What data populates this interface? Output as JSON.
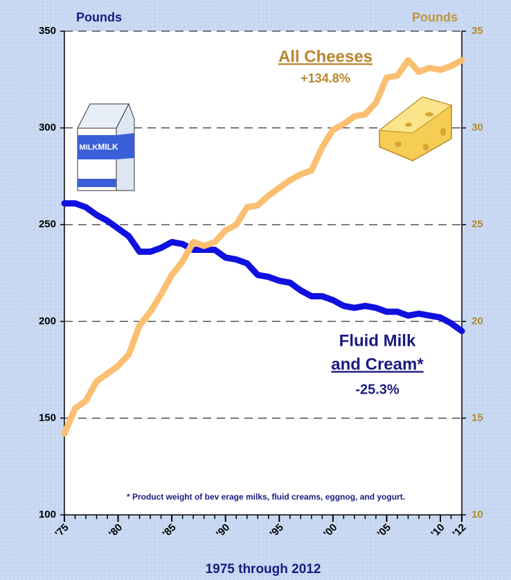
{
  "chart_data": {
    "type": "line",
    "x": [
      1975,
      1976,
      1977,
      1978,
      1979,
      1980,
      1981,
      1982,
      1983,
      1984,
      1985,
      1986,
      1987,
      1988,
      1989,
      1990,
      1991,
      1992,
      1993,
      1994,
      1995,
      1996,
      1997,
      1998,
      1999,
      2000,
      2001,
      2002,
      2003,
      2004,
      2005,
      2006,
      2007,
      2008,
      2009,
      2010,
      2011,
      2012
    ],
    "xlim": [
      1975,
      2012
    ],
    "xticks": [
      {
        "value": 1975,
        "label": "'75"
      },
      {
        "value": 1980,
        "label": "'80"
      },
      {
        "value": 1985,
        "label": "'85"
      },
      {
        "value": 1990,
        "label": "'90"
      },
      {
        "value": 1995,
        "label": "'95"
      },
      {
        "value": 2000,
        "label": "'00"
      },
      {
        "value": 2005,
        "label": "'05"
      },
      {
        "value": 2010,
        "label": "'10"
      },
      {
        "value": 2012,
        "label": "'12"
      }
    ],
    "ylim": [
      100,
      350
    ],
    "yticks": [
      100,
      150,
      200,
      250,
      300,
      350
    ],
    "y2lim": [
      10,
      35
    ],
    "y2ticks": [
      10,
      15,
      20,
      25,
      30,
      35
    ],
    "ylabel": "Pounds",
    "y2label": "Pounds",
    "xlabel": "1975 through 2012",
    "grid": true,
    "series": [
      {
        "name": "Fluid Milk and Cream",
        "color": "#1010e0",
        "axis": "y",
        "values": [
          261,
          261,
          259,
          255,
          252,
          248,
          244,
          236,
          236,
          238,
          241,
          240,
          237,
          237,
          237,
          233,
          232,
          230,
          224,
          223,
          221,
          220,
          216,
          213,
          213,
          211,
          208,
          207,
          208,
          207,
          205,
          205,
          203,
          204,
          203,
          202,
          199,
          195
        ]
      },
      {
        "name": "All Cheeses",
        "color": "#fbbf72",
        "axis": "y2",
        "values": [
          14.2,
          15.5,
          15.9,
          16.9,
          17.3,
          17.7,
          18.3,
          19.8,
          20.5,
          21.4,
          22.4,
          23.1,
          24.1,
          23.9,
          24.1,
          24.7,
          25.0,
          25.9,
          26.0,
          26.5,
          26.9,
          27.3,
          27.6,
          27.8,
          29.0,
          29.9,
          30.2,
          30.6,
          30.7,
          31.3,
          32.6,
          32.7,
          33.5,
          32.9,
          33.1,
          33.0,
          33.2,
          33.5
        ]
      }
    ],
    "annotations": {
      "cheese_name": "All Cheeses",
      "cheese_change": "+134.8%",
      "milk_name_1": "Fluid Milk",
      "milk_name_2": "and Cream*",
      "milk_change": "-25.3%",
      "footnote": "* Product weight of bev erage milks, fluid creams, eggnog, and yogurt.",
      "carton_label": "MILK"
    }
  }
}
